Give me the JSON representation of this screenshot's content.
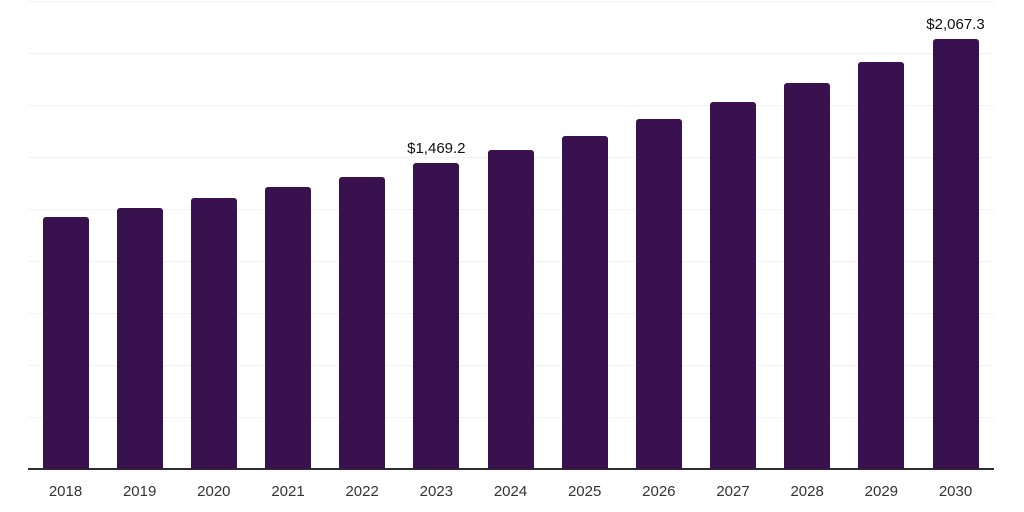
{
  "chart_data": {
    "type": "bar",
    "title": "",
    "xlabel": "",
    "ylabel": "",
    "categories": [
      "2018",
      "2019",
      "2020",
      "2021",
      "2022",
      "2023",
      "2024",
      "2025",
      "2026",
      "2027",
      "2028",
      "2029",
      "2030"
    ],
    "values": [
      1212,
      1255,
      1303,
      1356,
      1404,
      1469.2,
      1534,
      1601,
      1683,
      1765,
      1856,
      1957,
      2067.3
    ],
    "data_labels": {
      "2023": "$1,469.2",
      "2030": "$2,067.3"
    },
    "ylim": [
      0,
      2250
    ],
    "grid_step": 250,
    "grid": true,
    "legend": false,
    "bar_color": "#38114E",
    "axis_line_color": "#2E2E2E",
    "gridline_color": "#F2F2F2",
    "tick_label_color": "#333333",
    "data_label_color": "#111111"
  }
}
